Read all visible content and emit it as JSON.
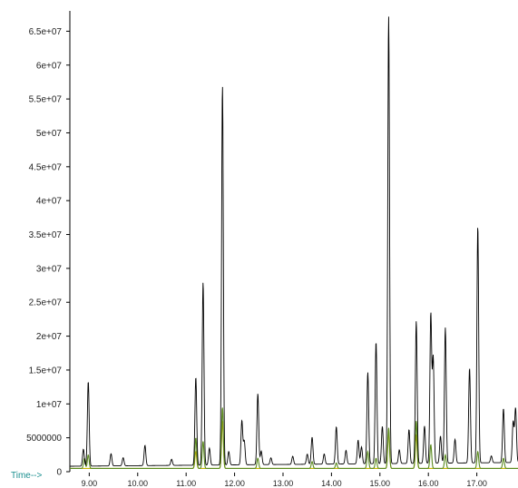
{
  "chart_data": {
    "type": "line",
    "title": "",
    "xlabel": "Time-->",
    "ylabel": "",
    "xlim": [
      8.6,
      17.85
    ],
    "ylim": [
      0,
      68000000
    ],
    "grid": false,
    "legend": "none",
    "y_ticks": [
      0,
      5000000,
      10000000,
      15000000,
      20000000,
      25000000,
      30000000,
      35000000,
      40000000,
      45000000,
      50000000,
      55000000,
      60000000,
      65000000
    ],
    "y_tick_labels": [
      "0",
      "5000000",
      "1e+07",
      "1.5e+07",
      "2e+07",
      "2.5e+07",
      "3e+07",
      "3.5e+07",
      "4e+07",
      "4.5e+07",
      "5e+07",
      "5.5e+07",
      "6e+07",
      "6.5e+07"
    ],
    "x_ticks": [
      9.0,
      10.0,
      11.0,
      12.0,
      13.0,
      14.0,
      15.0,
      16.0,
      17.0
    ],
    "x_tick_labels": [
      "9.00",
      "10.00",
      "11.00",
      "12.00",
      "13.00",
      "14.00",
      "15.00",
      "16.00",
      "17.00"
    ],
    "baseline": 800000,
    "series": [
      {
        "color": "#000000",
        "peaks": [
          [
            8.88,
            2500000
          ],
          [
            8.98,
            12500000
          ],
          [
            9.45,
            1800000
          ],
          [
            9.7,
            1200000
          ],
          [
            10.15,
            3000000
          ],
          [
            10.7,
            900000
          ],
          [
            11.2,
            13000000
          ],
          [
            11.35,
            27000000
          ],
          [
            11.48,
            2500000
          ],
          [
            11.75,
            56000000
          ],
          [
            11.88,
            2000000
          ],
          [
            12.15,
            6500000
          ],
          [
            12.2,
            3500000
          ],
          [
            12.48,
            10500000
          ],
          [
            12.55,
            2000000
          ],
          [
            12.75,
            1000000
          ],
          [
            13.2,
            1200000
          ],
          [
            13.5,
            1500000
          ],
          [
            13.6,
            4000000
          ],
          [
            13.85,
            1500000
          ],
          [
            14.1,
            5500000
          ],
          [
            14.3,
            2000000
          ],
          [
            14.55,
            3500000
          ],
          [
            14.62,
            2500000
          ],
          [
            14.75,
            13500000
          ],
          [
            14.92,
            18000000
          ],
          [
            15.05,
            5500000
          ],
          [
            15.18,
            66000000
          ],
          [
            15.4,
            2000000
          ],
          [
            15.6,
            5000000
          ],
          [
            15.75,
            21000000
          ],
          [
            15.92,
            5500000
          ],
          [
            16.05,
            22000000
          ],
          [
            16.1,
            15500000
          ],
          [
            16.25,
            4000000
          ],
          [
            16.35,
            20000000
          ],
          [
            16.55,
            3500000
          ],
          [
            16.85,
            14000000
          ],
          [
            17.02,
            35000000
          ],
          [
            17.3,
            1000000
          ],
          [
            17.55,
            8000000
          ],
          [
            17.75,
            6000000
          ],
          [
            17.8,
            8000000
          ]
        ]
      },
      {
        "color": "#5a8a1e",
        "peaks": [
          [
            8.9,
            1500000
          ],
          [
            8.98,
            2000000
          ],
          [
            11.2,
            4500000
          ],
          [
            11.35,
            4000000
          ],
          [
            11.75,
            9000000
          ],
          [
            12.48,
            1500000
          ],
          [
            13.6,
            1000000
          ],
          [
            14.1,
            800000
          ],
          [
            14.75,
            2500000
          ],
          [
            14.92,
            1500000
          ],
          [
            15.18,
            6000000
          ],
          [
            15.75,
            7000000
          ],
          [
            16.05,
            3500000
          ],
          [
            16.35,
            2000000
          ],
          [
            17.02,
            2500000
          ],
          [
            17.55,
            1500000
          ]
        ]
      },
      {
        "color": "#c8b400",
        "peaks": [
          [
            11.75,
            7000000
          ],
          [
            15.18,
            5500000
          ],
          [
            15.75,
            5000000
          ],
          [
            11.2,
            2500000
          ]
        ]
      }
    ]
  }
}
